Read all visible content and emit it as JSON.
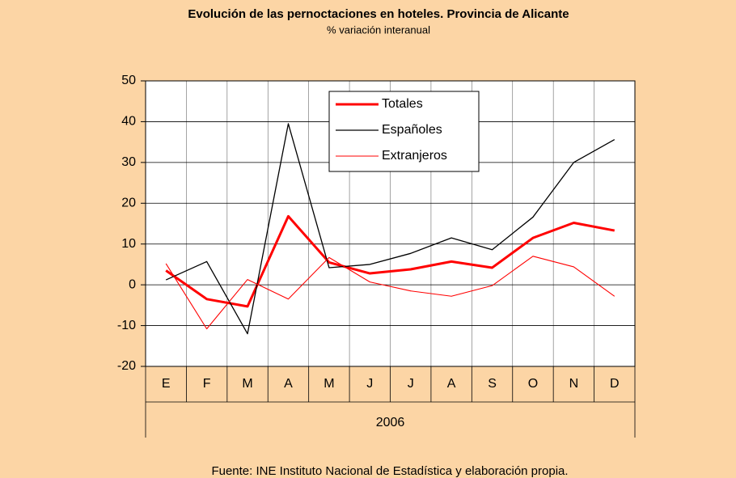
{
  "chart_data": {
    "type": "line",
    "title": "Evolución de las pernoctaciones en hoteles. Provincia de Alicante",
    "subtitle": "% variación interanual",
    "categories": [
      "E",
      "F",
      "M",
      "A",
      "M",
      "J",
      "J",
      "A",
      "S",
      "O",
      "N",
      "D"
    ],
    "x_group_label": "2006",
    "series": [
      {
        "name": "Totales",
        "color": "#ff0000",
        "values": [
          3.5,
          -3.5,
          -5.3,
          16.8,
          5.5,
          2.8,
          3.8,
          5.7,
          4.2,
          11.5,
          15.2,
          13.3
        ]
      },
      {
        "name": "Españoles",
        "color": "#000000",
        "values": [
          1.2,
          5.7,
          -12.0,
          39.5,
          4.2,
          5.0,
          7.7,
          11.5,
          8.6,
          16.6,
          30.0,
          35.6
        ]
      },
      {
        "name": "Extranjeros",
        "color": "#ff0000",
        "values": [
          5.2,
          -10.8,
          1.3,
          -3.5,
          6.7,
          0.7,
          -1.5,
          -2.8,
          -0.2,
          7.0,
          4.4,
          -2.8
        ]
      }
    ],
    "ylim": [
      -20,
      50
    ],
    "yticks": [
      -20,
      -10,
      0,
      10,
      20,
      30,
      40,
      50
    ],
    "grid": true,
    "legend": "top",
    "source": "Fuente: INE Instituto Nacional de Estadística y elaboración propia."
  }
}
